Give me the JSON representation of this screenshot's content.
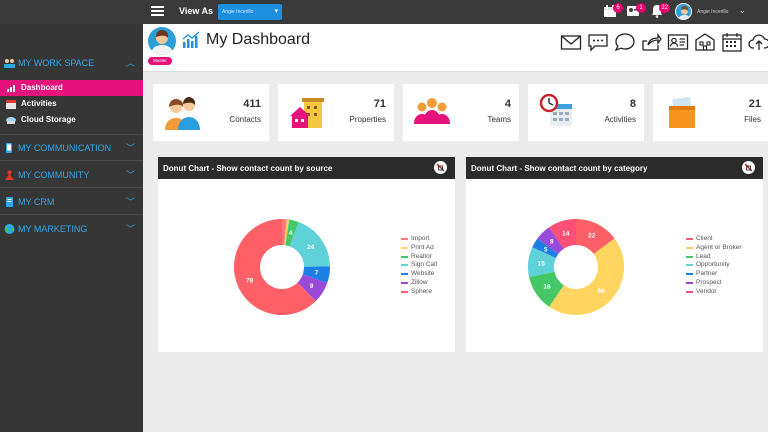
{
  "topbar": {
    "view_as_label": "View As",
    "view_as_value": "Angie Incerillo",
    "badges": [
      "6",
      "1",
      "22"
    ],
    "user_name": "Angie Incerillo"
  },
  "sidebar": {
    "sections": [
      {
        "label": "MY WORK SPACE",
        "chevron": "︿",
        "items": [
          {
            "label": "Dashboard",
            "active": true
          },
          {
            "label": "Activities"
          },
          {
            "label": "Cloud Storage"
          }
        ]
      },
      {
        "label": "MY COMMUNICATION",
        "chevron": "﹀"
      },
      {
        "label": "MY COMMUNITY",
        "chevron": "﹀"
      },
      {
        "label": "MY CRM",
        "chevron": "﹀"
      },
      {
        "label": "MY MARKETING",
        "chevron": "﹀"
      }
    ]
  },
  "header": {
    "title": "My Dashboard",
    "role_badge": "Master"
  },
  "stats": [
    {
      "value": "411",
      "label": "Contacts",
      "icon": "contacts-icon"
    },
    {
      "value": "71",
      "label": "Properties",
      "icon": "properties-icon"
    },
    {
      "value": "4",
      "label": "Teams",
      "icon": "teams-icon"
    },
    {
      "value": "8",
      "label": "Activities",
      "icon": "activities-icon"
    },
    {
      "value": "21",
      "label": "Files",
      "icon": "files-icon"
    }
  ],
  "chart_data": [
    {
      "type": "donut",
      "title": "Donut Chart - Show contact count by source",
      "categories": [
        "Import",
        "Print Ad",
        "Realtor",
        "Sign Call",
        "Website",
        "Zillow",
        "Sphere"
      ],
      "values": [
        2,
        1,
        4,
        24,
        7,
        9,
        78
      ],
      "colors": [
        "#ff7b7b",
        "#ffd45f",
        "#45c768",
        "#5fd1d8",
        "#1c7fe6",
        "#9a4ad8",
        "#ff5f66"
      ],
      "legend": "right"
    },
    {
      "type": "donut",
      "title": "Donut Chart - Show contact count by category",
      "categories": [
        "Client",
        "Agent or Broker",
        "Lead",
        "Opportunity",
        "Partner",
        "Prospect",
        "Vendor"
      ],
      "values": [
        22,
        66,
        18,
        15,
        5,
        8,
        14
      ],
      "colors": [
        "#ff5f66",
        "#ffd45f",
        "#45c768",
        "#5fd1d8",
        "#1c7fe6",
        "#9a4ad8",
        "#ff4f76"
      ],
      "legend": "right"
    }
  ]
}
